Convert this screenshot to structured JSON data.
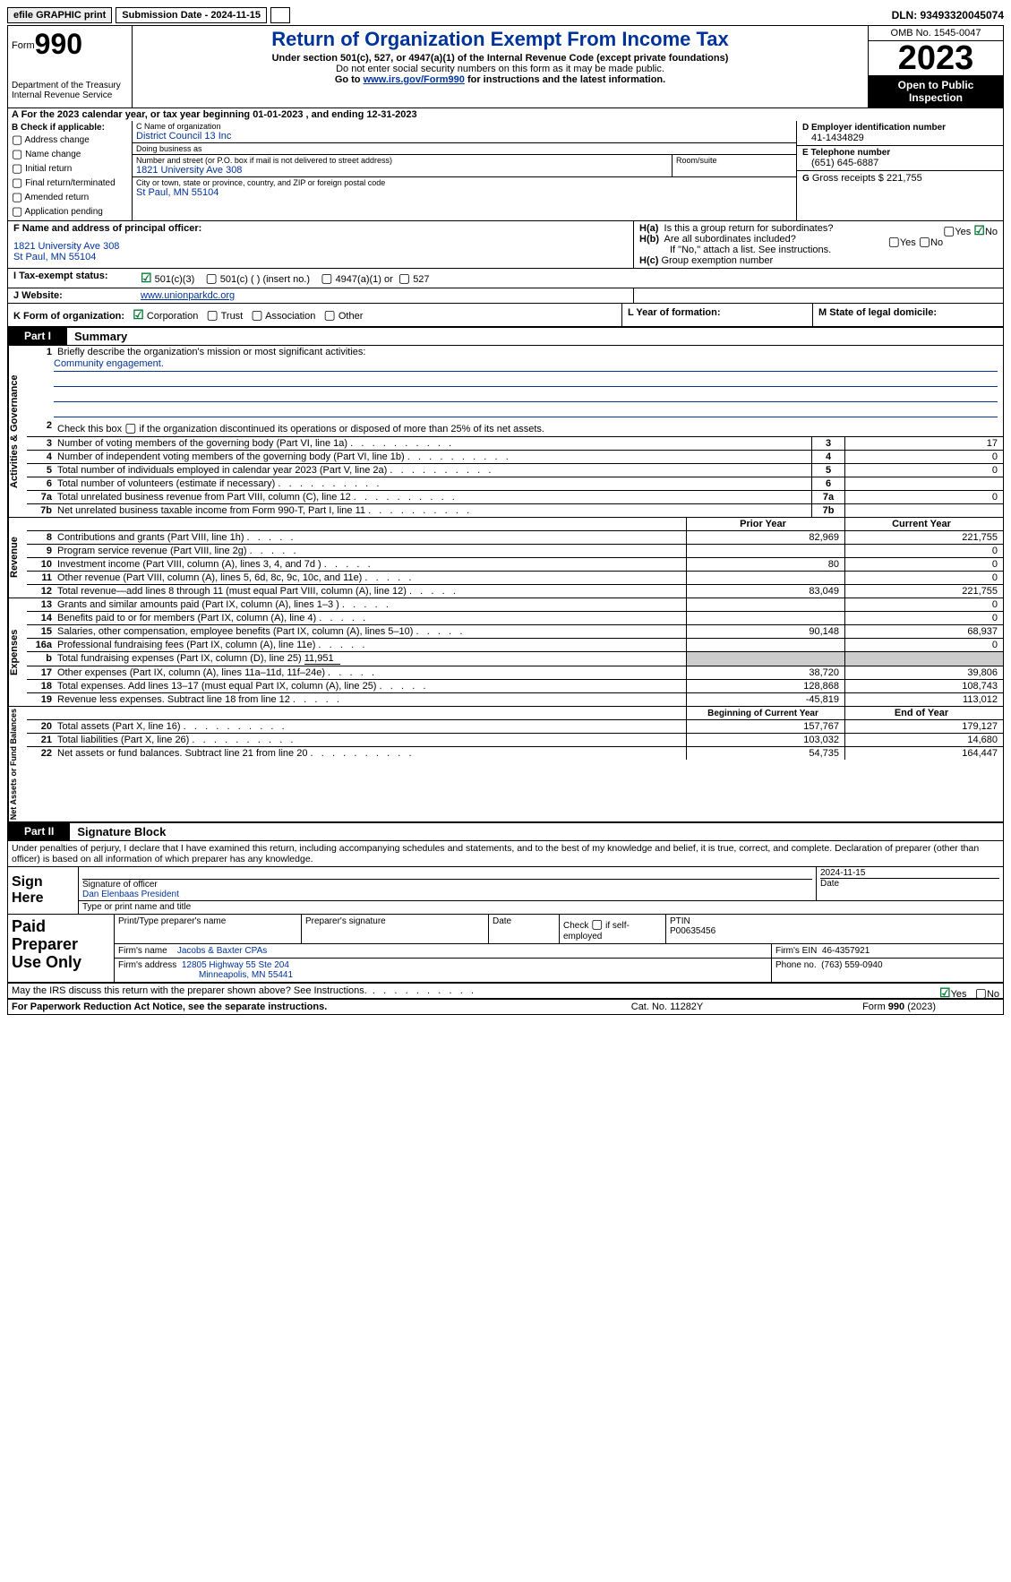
{
  "topbar": {
    "efile": "efile GRAPHIC print",
    "submission_label": "Submission Date - 2024-11-15",
    "dln_label": "DLN: 93493320045074"
  },
  "header": {
    "form_label": "Form",
    "form_num": "990",
    "dept": "Department of the Treasury",
    "irs": "Internal Revenue Service",
    "title": "Return of Organization Exempt From Income Tax",
    "sub1": "Under section 501(c), 527, or 4947(a)(1) of the Internal Revenue Code (except private foundations)",
    "sub2": "Do not enter social security numbers on this form as it may be made public.",
    "sub3_prefix": "Go to ",
    "sub3_link": "www.irs.gov/Form990",
    "sub3_suffix": " for instructions and the latest information.",
    "omb": "OMB No. 1545-0047",
    "year": "2023",
    "open": "Open to Public Inspection"
  },
  "lineA": {
    "text": "A  For the 2023 calendar year, or tax year beginning 01-01-2023    , and ending 12-31-2023"
  },
  "colB": {
    "hdr": "B Check if applicable:",
    "items": [
      "Address change",
      "Name change",
      "Initial return",
      "Final return/terminated",
      "Amended return",
      "Application pending"
    ]
  },
  "colC": {
    "name_lbl": "C Name of organization",
    "name": "District Council 13 Inc",
    "dba_lbl": "Doing business as",
    "dba": "",
    "addr_lbl": "Number and street (or P.O. box if mail is not delivered to street address)",
    "addr": "1821 University Ave 308",
    "room_lbl": "Room/suite",
    "city_lbl": "City or town, state or province, country, and ZIP or foreign postal code",
    "city": "St Paul, MN  55104"
  },
  "colD": {
    "lbl": "D Employer identification number",
    "val": "41-1434829"
  },
  "colE": {
    "lbl": "E Telephone number",
    "val": "(651) 645-6887"
  },
  "colG": {
    "lbl": "G",
    "text": "Gross receipts $ 221,755"
  },
  "colF": {
    "lbl": "F  Name and address of principal officer:",
    "line1": "1821 University Ave 308",
    "line2": "St Paul, MN  55104"
  },
  "colH": {
    "a_lbl": "H(a)",
    "a_text": "Is this a group return for subordinates?",
    "a_no_checked": true,
    "b_lbl": "H(b)",
    "b_text": "Are all subordinates included?",
    "note": "If \"No,\" attach a list. See instructions.",
    "c_lbl": "H(c)",
    "c_text": "Group exemption number"
  },
  "rowI": {
    "lbl": "I   Tax-exempt status:",
    "opt1": "501(c)(3)",
    "opt2": "501(c) (  ) (insert no.)",
    "opt3": "4947(a)(1) or",
    "opt4": "527",
    "checked": 1
  },
  "rowJ": {
    "lbl": "J   Website:",
    "val": "www.unionparkdc.org"
  },
  "rowK": {
    "lbl": "K Form of organization:",
    "opts": [
      "Corporation",
      "Trust",
      "Association",
      "Other"
    ],
    "checked": 0,
    "l_lbl": "L Year of formation:",
    "m_lbl": "M State of legal domicile:"
  },
  "part1": {
    "tab": "Part I",
    "title": "Summary"
  },
  "gov": {
    "label": "Activities & Governance",
    "l1_num": "1",
    "l1": "Briefly describe the organization's mission or most significant activities:",
    "mission": "Community engagement.",
    "l2_num": "2",
    "l2": "Check this box     if the organization discontinued its operations or disposed of more than 25% of its net assets.",
    "rows": [
      {
        "n": "3",
        "d": "Number of voting members of the governing body (Part VI, line 1a)",
        "v": "17"
      },
      {
        "n": "4",
        "d": "Number of independent voting members of the governing body (Part VI, line 1b)",
        "v": "0"
      },
      {
        "n": "5",
        "d": "Total number of individuals employed in calendar year 2023 (Part V, line 2a)",
        "v": "0"
      },
      {
        "n": "6",
        "d": "Total number of volunteers (estimate if necessary)",
        "v": ""
      },
      {
        "n": "7a",
        "d": "Total unrelated business revenue from Part VIII, column (C), line 12",
        "v": "0"
      },
      {
        "n": "7b",
        "d": "Net unrelated business taxable income from Form 990-T, Part I, line 11",
        "v": ""
      }
    ]
  },
  "rev": {
    "label": "Revenue",
    "hdr_prior": "Prior Year",
    "hdr_curr": "Current Year",
    "rows": [
      {
        "n": "8",
        "d": "Contributions and grants (Part VIII, line 1h)",
        "p": "82,969",
        "c": "221,755"
      },
      {
        "n": "9",
        "d": "Program service revenue (Part VIII, line 2g)",
        "p": "",
        "c": "0"
      },
      {
        "n": "10",
        "d": "Investment income (Part VIII, column (A), lines 3, 4, and 7d )",
        "p": "80",
        "c": "0"
      },
      {
        "n": "11",
        "d": "Other revenue (Part VIII, column (A), lines 5, 6d, 8c, 9c, 10c, and 11e)",
        "p": "",
        "c": "0"
      },
      {
        "n": "12",
        "d": "Total revenue—add lines 8 through 11 (must equal Part VIII, column (A), line 12)",
        "p": "83,049",
        "c": "221,755"
      }
    ]
  },
  "exp": {
    "label": "Expenses",
    "rows": [
      {
        "n": "13",
        "d": "Grants and similar amounts paid (Part IX, column (A), lines 1–3 )",
        "p": "",
        "c": "0"
      },
      {
        "n": "14",
        "d": "Benefits paid to or for members (Part IX, column (A), line 4)",
        "p": "",
        "c": "0"
      },
      {
        "n": "15",
        "d": "Salaries, other compensation, employee benefits (Part IX, column (A), lines 5–10)",
        "p": "90,148",
        "c": "68,937"
      },
      {
        "n": "16a",
        "d": "Professional fundraising fees (Part IX, column (A), line 11e)",
        "p": "",
        "c": "0"
      },
      {
        "n": "b",
        "d": "Total fundraising expenses (Part IX, column (D), line 25)",
        "v": "11,951",
        "shaded": true
      },
      {
        "n": "17",
        "d": "Other expenses (Part IX, column (A), lines 11a–11d, 11f–24e)",
        "p": "38,720",
        "c": "39,806"
      },
      {
        "n": "18",
        "d": "Total expenses. Add lines 13–17 (must equal Part IX, column (A), line 25)",
        "p": "128,868",
        "c": "108,743"
      },
      {
        "n": "19",
        "d": "Revenue less expenses. Subtract line 18 from line 12",
        "p": "-45,819",
        "c": "113,012"
      }
    ]
  },
  "net": {
    "label": "Net Assets or Fund Balances",
    "hdr_beg": "Beginning of Current Year",
    "hdr_end": "End of Year",
    "rows": [
      {
        "n": "20",
        "d": "Total assets (Part X, line 16)",
        "p": "157,767",
        "c": "179,127"
      },
      {
        "n": "21",
        "d": "Total liabilities (Part X, line 26)",
        "p": "103,032",
        "c": "14,680"
      },
      {
        "n": "22",
        "d": "Net assets or fund balances. Subtract line 21 from line 20",
        "p": "54,735",
        "c": "164,447"
      }
    ]
  },
  "part2": {
    "tab": "Part II",
    "title": "Signature Block"
  },
  "sig": {
    "decl": "Under penalties of perjury, I declare that I have examined this return, including accompanying schedules and statements, and to the best of my knowledge and belief, it is true, correct, and complete. Declaration of preparer (other than officer) is based on all information of which preparer has any knowledge.",
    "here": "Sign Here",
    "date": "2024-11-15",
    "sig_lbl": "Signature of officer",
    "date_lbl": "Date",
    "name": "Dan Elenbaas  President",
    "name_lbl": "Type or print name and title"
  },
  "ppo": {
    "title": "Paid Preparer Use Only",
    "h1": "Print/Type preparer's name",
    "h2": "Preparer's signature",
    "h3": "Date",
    "h4": "Check      if self-employed",
    "h5_lbl": "PTIN",
    "h5": "P00635456",
    "firm_lbl": "Firm's name",
    "firm": "Jacobs & Baxter CPAs",
    "ein_lbl": "Firm's EIN",
    "ein": "46-4357921",
    "addr_lbl": "Firm's address",
    "addr1": "12805 Highway 55 Ste 204",
    "addr2": "Minneapolis, MN  55441",
    "phone_lbl": "Phone no.",
    "phone": "(763) 559-0940"
  },
  "discuss": {
    "text": "May the IRS discuss this return with the preparer shown above? See Instructions.",
    "yes_checked": true
  },
  "footer": {
    "l": "For Paperwork Reduction Act Notice, see the separate instructions.",
    "m": "Cat. No. 11282Y",
    "r_prefix": "Form ",
    "r_form": "990",
    "r_suffix": " (2023)"
  }
}
